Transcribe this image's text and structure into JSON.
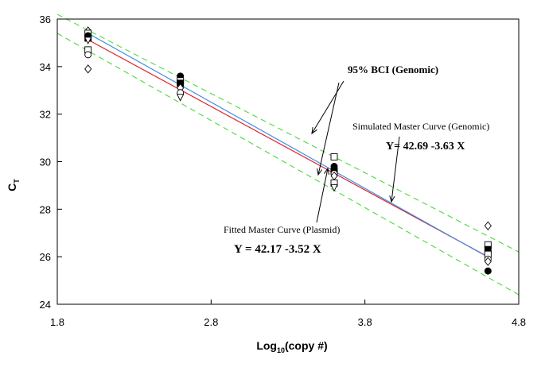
{
  "chart_data": {
    "type": "scatter",
    "title": "",
    "xlabel": {
      "main": "Log",
      "sub": "10",
      "rest": "(copy #)"
    },
    "ylabel": {
      "main": "C",
      "sub": "T"
    },
    "xlim": [
      1.8,
      4.8
    ],
    "ylim": [
      24,
      36
    ],
    "xticks": [
      1.8,
      2.8,
      3.8,
      4.8
    ],
    "yticks": [
      24,
      26,
      28,
      30,
      32,
      34,
      36
    ],
    "xtick_labels": [
      "1.8",
      "2.8",
      "3.8",
      "4.8"
    ],
    "ytick_labels": [
      "24",
      "26",
      "28",
      "30",
      "32",
      "34",
      "36"
    ],
    "grid": false,
    "colors": {
      "fitted": "#e0262b",
      "simulated": "#3f8fe8",
      "bci": "#55dd44",
      "points": "#000000"
    },
    "lines": {
      "fitted": {
        "x": [
          2.0,
          4.6
        ],
        "y": [
          35.13,
          26.0
        ]
      },
      "simulated": {
        "x": [
          2.0,
          4.6
        ],
        "y": [
          35.4,
          25.98
        ]
      },
      "bci_upper": {
        "x": [
          1.8,
          4.8
        ],
        "y": [
          36.2,
          26.2
        ]
      },
      "bci_lower": {
        "x": [
          1.8,
          4.8
        ],
        "y": [
          35.4,
          24.4
        ]
      }
    },
    "points": [
      {
        "x": 2.0,
        "y": 35.5,
        "marker": "diamond"
      },
      {
        "x": 2.0,
        "y": 35.4,
        "marker": "square"
      },
      {
        "x": 2.0,
        "y": 35.3,
        "marker": "circle-filled"
      },
      {
        "x": 2.0,
        "y": 35.2,
        "marker": "square-filled"
      },
      {
        "x": 2.0,
        "y": 35.1,
        "marker": "triangle"
      },
      {
        "x": 2.0,
        "y": 34.7,
        "marker": "square"
      },
      {
        "x": 2.0,
        "y": 34.5,
        "marker": "circle"
      },
      {
        "x": 2.0,
        "y": 33.9,
        "marker": "diamond"
      },
      {
        "x": 2.6,
        "y": 33.6,
        "marker": "circle-filled"
      },
      {
        "x": 2.6,
        "y": 33.4,
        "marker": "square"
      },
      {
        "x": 2.6,
        "y": 33.3,
        "marker": "square-filled"
      },
      {
        "x": 2.6,
        "y": 33.1,
        "marker": "diamond"
      },
      {
        "x": 2.6,
        "y": 32.9,
        "marker": "circle"
      },
      {
        "x": 2.6,
        "y": 32.7,
        "marker": "triangle"
      },
      {
        "x": 3.6,
        "y": 30.2,
        "marker": "square"
      },
      {
        "x": 3.6,
        "y": 29.8,
        "marker": "circle-filled"
      },
      {
        "x": 3.6,
        "y": 29.6,
        "marker": "square-filled"
      },
      {
        "x": 3.6,
        "y": 29.5,
        "marker": "circle"
      },
      {
        "x": 3.6,
        "y": 29.4,
        "marker": "diamond"
      },
      {
        "x": 3.6,
        "y": 29.1,
        "marker": "square"
      },
      {
        "x": 3.6,
        "y": 28.9,
        "marker": "triangle"
      },
      {
        "x": 4.6,
        "y": 27.3,
        "marker": "diamond"
      },
      {
        "x": 4.6,
        "y": 26.5,
        "marker": "square"
      },
      {
        "x": 4.6,
        "y": 26.3,
        "marker": "square-filled"
      },
      {
        "x": 4.6,
        "y": 26.1,
        "marker": "square"
      },
      {
        "x": 4.6,
        "y": 25.9,
        "marker": "circle"
      },
      {
        "x": 4.6,
        "y": 25.8,
        "marker": "diamond"
      },
      {
        "x": 4.6,
        "y": 25.4,
        "marker": "circle-filled"
      }
    ],
    "annotations": {
      "bci": {
        "text": "95% BCI (Genomic)"
      },
      "simulated": {
        "text": "Simulated Master Curve (Genomic)",
        "equation": "Y= 42.69 -3.63 X"
      },
      "fitted": {
        "text": "Fitted Master Curve (Plasmid)",
        "equation": "Y = 42.17 -3.52 X"
      }
    }
  }
}
